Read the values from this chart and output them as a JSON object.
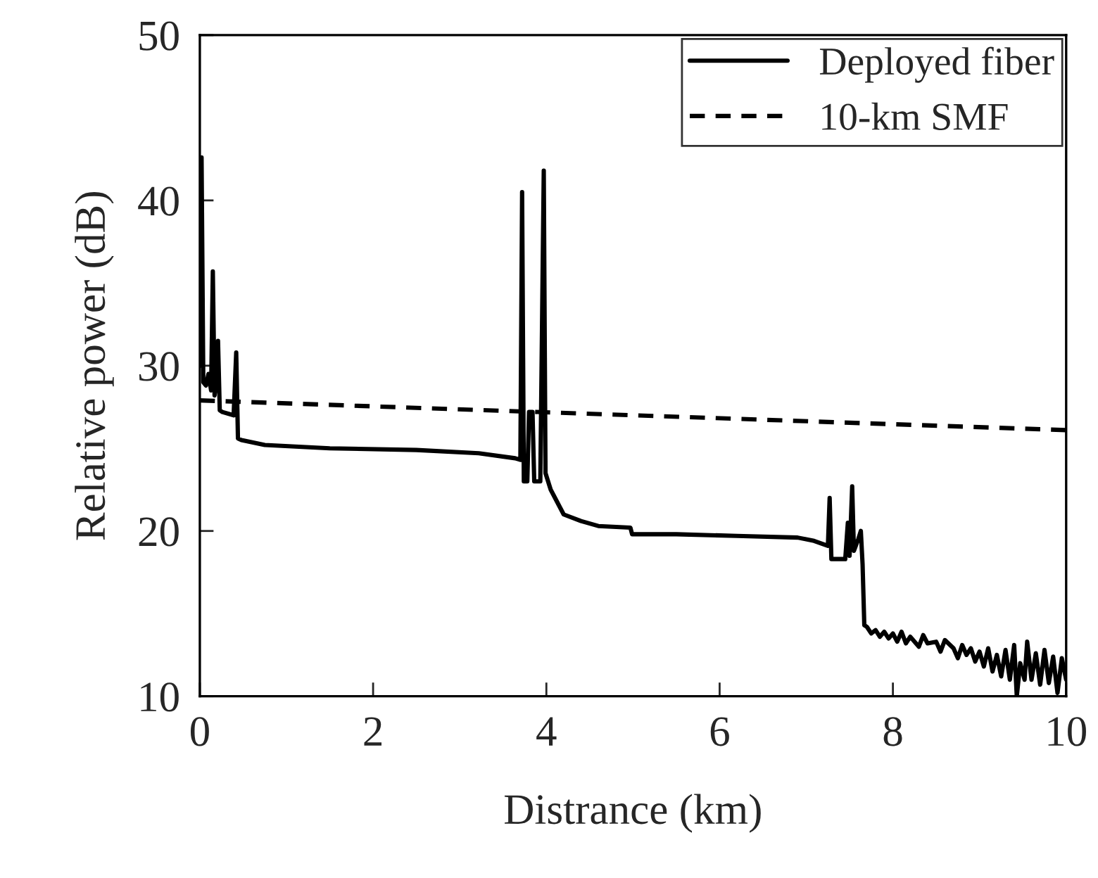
{
  "chart_data": {
    "type": "line",
    "xlabel": "Distrance (km)",
    "ylabel": "Relative power (dB)",
    "xlim": [
      0,
      10
    ],
    "xticks": [
      0,
      2,
      4,
      6,
      8,
      10
    ],
    "ylim": [
      10,
      50
    ],
    "yticks": [
      10,
      20,
      30,
      40,
      50
    ],
    "grid": false,
    "legend": "top right",
    "marker": "none",
    "series": [
      {
        "name": "Deployed fiber",
        "color": "#000000",
        "line_style": "solid",
        "x": [
          0.01,
          0.02,
          0.04,
          0.07,
          0.1,
          0.13,
          0.15,
          0.17,
          0.19,
          0.21,
          0.23,
          0.26,
          0.39,
          0.42,
          0.44,
          0.48,
          0.75,
          1.5,
          2.5,
          3.22,
          3.64,
          3.7,
          3.72,
          3.74,
          3.78,
          3.8,
          3.84,
          3.86,
          3.93,
          3.97,
          3.99,
          4.05,
          4.2,
          4.4,
          4.6,
          4.97,
          4.99,
          5.5,
          6.2,
          6.9,
          7.09,
          7.25,
          7.27,
          7.29,
          7.45,
          7.48,
          7.5,
          7.53,
          7.55,
          7.6,
          7.63,
          7.65,
          7.67,
          7.7,
          7.75,
          7.8,
          7.85,
          7.9,
          7.95,
          8.0,
          8.05,
          8.1,
          8.15,
          8.2,
          8.3,
          8.35,
          8.4,
          8.5,
          8.55,
          8.6,
          8.7,
          8.75,
          8.8,
          8.85,
          8.9,
          8.95,
          9.0,
          9.05,
          9.1,
          9.15,
          9.2,
          9.25,
          9.3,
          9.35,
          9.4,
          9.43,
          9.47,
          9.52,
          9.55,
          9.6,
          9.65,
          9.7,
          9.75,
          9.8,
          9.85,
          9.9,
          9.95,
          10.0
        ],
        "values": [
          30,
          42.6,
          29,
          28.8,
          29.5,
          28.5,
          35.7,
          28.2,
          29.0,
          31.5,
          27.3,
          27.2,
          27.0,
          30.8,
          25.6,
          25.5,
          25.2,
          25.0,
          24.9,
          24.7,
          24.4,
          24.3,
          40.5,
          23.0,
          23.0,
          27.2,
          27.2,
          23.0,
          23.0,
          41.8,
          23.5,
          22.5,
          21.0,
          20.6,
          20.3,
          20.2,
          19.8,
          19.8,
          19.7,
          19.6,
          19.4,
          19.1,
          22.0,
          18.3,
          18.3,
          20.5,
          18.5,
          22.7,
          18.8,
          19.5,
          20.0,
          18.0,
          14.3,
          14.2,
          13.8,
          14.0,
          13.6,
          13.9,
          13.5,
          13.8,
          13.3,
          13.9,
          13.2,
          13.6,
          13.0,
          13.7,
          13.2,
          13.3,
          12.7,
          13.4,
          12.9,
          12.3,
          13.1,
          12.5,
          12.9,
          12.1,
          12.7,
          11.8,
          12.9,
          11.5,
          12.5,
          11.2,
          12.8,
          11.0,
          13.1,
          10.0,
          12.0,
          11.0,
          13.3,
          11.0,
          12.6,
          10.7,
          12.8,
          10.8,
          12.4,
          10.2,
          12.3,
          11.0
        ]
      },
      {
        "name": "10-km SMF",
        "color": "#000000",
        "line_style": "dashed",
        "x": [
          0,
          10
        ],
        "values": [
          27.9,
          26.1
        ]
      }
    ]
  }
}
